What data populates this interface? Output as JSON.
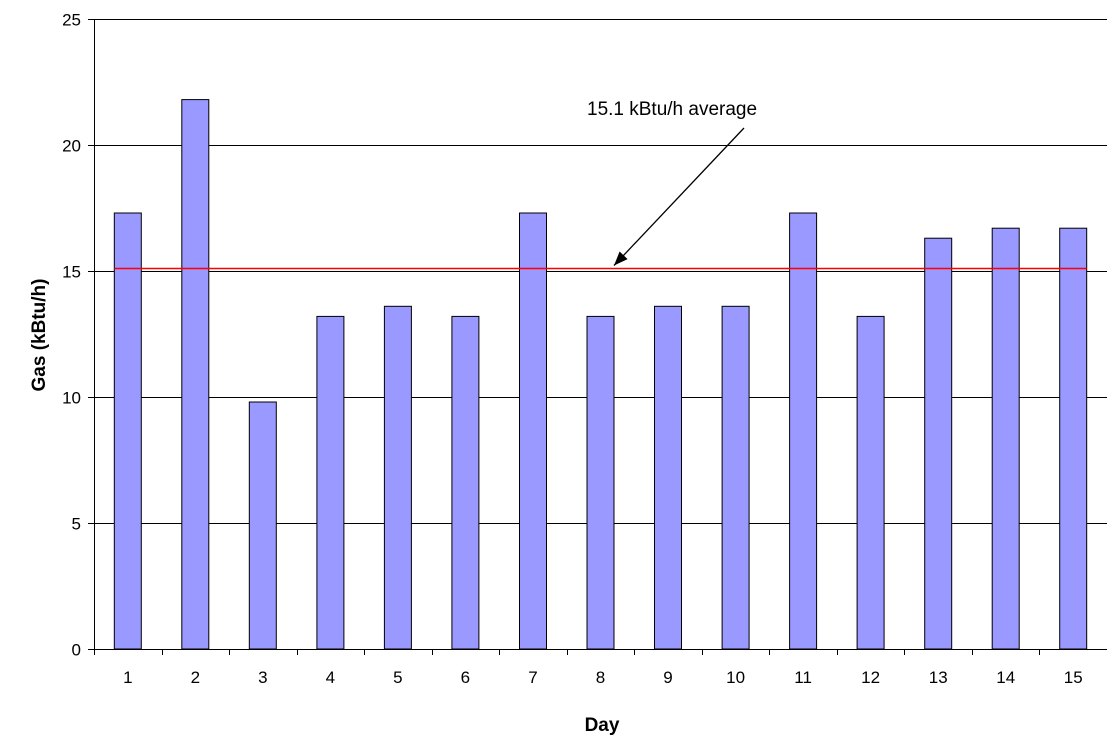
{
  "chart_data": {
    "type": "bar",
    "title": "",
    "xlabel": "Day",
    "ylabel": "Gas (kBtu/h)",
    "categories": [
      "1",
      "2",
      "3",
      "4",
      "5",
      "6",
      "7",
      "8",
      "9",
      "10",
      "11",
      "12",
      "13",
      "14",
      "15"
    ],
    "values": [
      17.3,
      21.8,
      9.8,
      13.2,
      13.6,
      13.2,
      17.3,
      13.2,
      13.6,
      13.6,
      17.3,
      13.2,
      16.3,
      16.7,
      16.7
    ],
    "ylim": [
      0,
      25
    ],
    "yticks": [
      0,
      5,
      10,
      15,
      20,
      25
    ],
    "grid": true,
    "legend": "none",
    "reference_line": {
      "value": 15.1,
      "label": "15.1 kBtu/h average",
      "color": "#ff0000"
    },
    "colors": {
      "bar_fill": "#9999ff",
      "bar_stroke": "#000000",
      "grid": "#000000"
    }
  }
}
